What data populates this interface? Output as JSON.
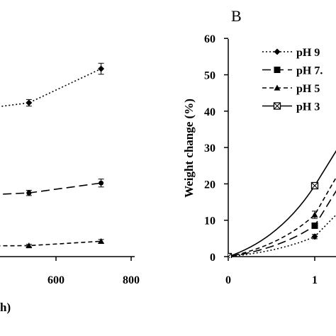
{
  "chart_data": [
    {
      "type": "line",
      "panel_label": "",
      "xlabel": "h)",
      "ylabel": "",
      "xlim": [
        -50,
        800
      ],
      "xticks": [
        600,
        800
      ],
      "grid": false,
      "error_bars": true,
      "series": [
        {
          "marker": "diamond",
          "dash": "dotted",
          "x": [
            -50,
            528,
            720
          ],
          "y": [
            0,
            12.5,
            28.0
          ],
          "err": [
            0,
            1.5,
            2.5
          ]
        },
        {
          "marker": "circle",
          "dash": "long-dash",
          "x": [
            -50,
            528,
            720
          ],
          "y": [
            -33,
            -28.5,
            -24.0
          ],
          "err": [
            0,
            1.2,
            1.8
          ]
        },
        {
          "marker": "triangle",
          "dash": "short-dash",
          "x": [
            -50,
            528,
            720
          ],
          "y": [
            -53,
            -52.5,
            -50.5
          ],
          "err": [
            0,
            0.6,
            0.8
          ]
        }
      ]
    },
    {
      "type": "line",
      "panel_label": "B",
      "xlabel": "",
      "ylabel": "Weight change (%)",
      "ylim": [
        0,
        60
      ],
      "yticks": [
        0,
        10,
        20,
        30,
        40,
        50,
        60
      ],
      "xticks": [
        0,
        1
      ],
      "grid": false,
      "legend_position": "top-right",
      "legend": [
        "pH 9",
        "pH 7.",
        "pH 5",
        "pH 3"
      ],
      "error_bars": true,
      "series": [
        {
          "name": "pH 9",
          "marker": "diamond",
          "dash": "dotted",
          "x": [
            0,
            1,
            1.35
          ],
          "y": [
            0,
            5.5,
            14
          ],
          "err": [
            0,
            0.6,
            0
          ]
        },
        {
          "name": "pH 7.",
          "marker": "square",
          "dash": "long-dash",
          "x": [
            0,
            1,
            1.35
          ],
          "y": [
            0,
            8.5,
            22
          ],
          "err": [
            0,
            0.6,
            0
          ]
        },
        {
          "name": "pH 5",
          "marker": "triangle",
          "dash": "short-dash",
          "x": [
            0,
            1,
            1.35
          ],
          "y": [
            0,
            11.5,
            26
          ],
          "err": [
            0,
            1.0,
            0
          ]
        },
        {
          "name": "pH 3",
          "marker": "square-x",
          "dash": "solid",
          "x": [
            0,
            1,
            1.35
          ],
          "y": [
            0,
            19.5,
            33
          ],
          "err": [
            0,
            0.8,
            0
          ]
        }
      ]
    }
  ]
}
